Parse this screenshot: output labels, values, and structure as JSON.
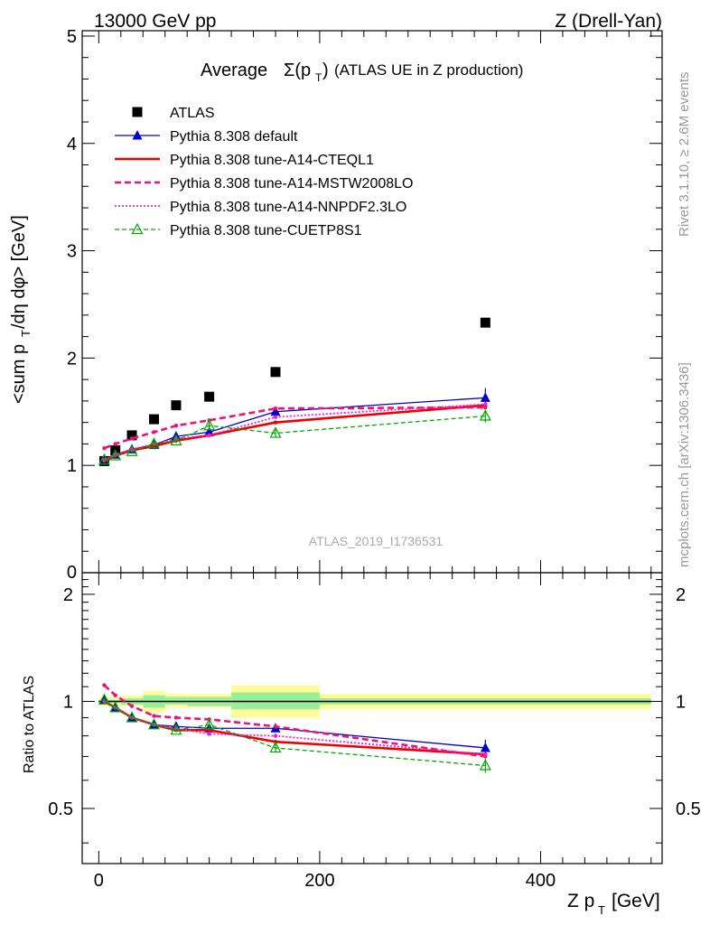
{
  "header": {
    "left": "13000 GeV pp",
    "right": "Z (Drell-Yan)"
  },
  "side_labels": {
    "rivet": "Rivet 3.1.10, ≥ 2.6M events",
    "mcplots": "mcplots.cern.ch [arXiv:1306.3436]"
  },
  "watermark": "ATLAS_2019_I1736531",
  "chart_data": [
    {
      "type": "line",
      "title_main": "Average",
      "title_sigma": "Σ(p",
      "title_sub": "T",
      "title_close": ")",
      "title_rest": "(ATLAS UE in Z production)",
      "ylabel": "<sum p",
      "ylabel_sub": "T",
      "ylabel_rest": "/dη dφ> [GeV]",
      "ylim": [
        0,
        5.05
      ],
      "xlim": [
        -15,
        510
      ],
      "y_ticks": [
        "1",
        "2",
        "3",
        "4",
        "5"
      ],
      "y_zero": "0",
      "legend_placement": "top-left",
      "x": [
        5,
        15,
        30,
        50,
        70,
        100,
        160,
        350
      ],
      "series": [
        {
          "name": "ATLAS",
          "style": "data",
          "color": "#000000",
          "values": [
            1.04,
            1.14,
            1.28,
            1.43,
            1.56,
            1.64,
            1.87,
            2.33
          ]
        },
        {
          "name": "Pythia 8.308 default",
          "style": "triangle",
          "color": "#0000cc",
          "values": [
            1.06,
            1.1,
            1.15,
            1.19,
            1.27,
            1.31,
            1.5,
            1.63
          ],
          "errors": [
            0.01,
            0.01,
            0.01,
            0.02,
            0.02,
            0.03,
            0.04,
            0.09
          ]
        },
        {
          "name": "Pythia 8.308 tune-A14-CTEQL1",
          "style": "solid",
          "color": "#ee0000",
          "values": [
            1.04,
            1.09,
            1.14,
            1.18,
            1.23,
            1.28,
            1.4,
            1.56
          ]
        },
        {
          "name": "Pythia 8.308 tune-A14-MSTW2008LO",
          "style": "dashed",
          "color": "#ee1177",
          "values": [
            1.16,
            1.2,
            1.25,
            1.31,
            1.37,
            1.42,
            1.53,
            1.54
          ]
        },
        {
          "name": "Pythia 8.308 tune-A14-NNPDF2.3LO",
          "style": "dotted",
          "color": "#ee22cc",
          "values": [
            1.05,
            1.1,
            1.15,
            1.2,
            1.25,
            1.28,
            1.45,
            1.57
          ]
        },
        {
          "name": "Pythia 8.308 tune-CUETP8S1",
          "style": "dashed-green",
          "color": "#00aa00",
          "values": [
            1.05,
            1.09,
            1.13,
            1.2,
            1.23,
            1.37,
            1.3,
            1.46
          ],
          "errors": [
            0.01,
            0.01,
            0.01,
            0.02,
            0.02,
            0.03,
            0.04,
            0.06
          ]
        }
      ]
    },
    {
      "type": "line",
      "ylabel": "Ratio to ATLAS",
      "xlabel": "Z p",
      "xlabel_sub": "T",
      "xlabel_rest": "[GeV]",
      "ylim": [
        0.35,
        2.3
      ],
      "xlim": [
        -15,
        510
      ],
      "y_ticks": [
        "0.5",
        "1",
        "2"
      ],
      "x_ticks": [
        "0",
        "200",
        "400"
      ],
      "reference_line": 1,
      "uncertainty_bands": [
        {
          "x": [
            0,
            10
          ],
          "stat_sys": [
            0.97,
            1.03
          ],
          "stat": [
            0.99,
            1.01
          ]
        },
        {
          "x": [
            10,
            20
          ],
          "stat_sys": [
            0.97,
            1.03
          ],
          "stat": [
            0.99,
            1.01
          ]
        },
        {
          "x": [
            20,
            40
          ],
          "stat_sys": [
            0.97,
            1.04
          ],
          "stat": [
            0.98,
            1.02
          ]
        },
        {
          "x": [
            40,
            60
          ],
          "stat_sys": [
            0.93,
            1.07
          ],
          "stat": [
            0.96,
            1.04
          ]
        },
        {
          "x": [
            60,
            80
          ],
          "stat_sys": [
            0.96,
            1.05
          ],
          "stat": [
            0.98,
            1.03
          ]
        },
        {
          "x": [
            80,
            120
          ],
          "stat_sys": [
            0.96,
            1.05
          ],
          "stat": [
            0.97,
            1.03
          ]
        },
        {
          "x": [
            120,
            200
          ],
          "stat_sys": [
            0.9,
            1.11
          ],
          "stat": [
            0.95,
            1.06
          ]
        },
        {
          "x": [
            200,
            500
          ],
          "stat_sys": [
            0.95,
            1.05
          ],
          "stat": [
            0.98,
            1.02
          ]
        }
      ],
      "x": [
        5,
        15,
        30,
        50,
        70,
        100,
        160,
        350
      ],
      "series": [
        {
          "name": "Pythia 8.308 default",
          "style": "triangle",
          "color": "#0000cc",
          "values": [
            1.01,
            0.96,
            0.9,
            0.86,
            0.85,
            0.84,
            0.84,
            0.74
          ],
          "errors": [
            0.01,
            0.01,
            0.01,
            0.01,
            0.01,
            0.02,
            0.02,
            0.04
          ]
        },
        {
          "name": "Pythia 8.308 tune-A14-CTEQL1",
          "style": "solid",
          "color": "#ee0000",
          "values": [
            1.0,
            0.96,
            0.9,
            0.86,
            0.83,
            0.83,
            0.77,
            0.71
          ]
        },
        {
          "name": "Pythia 8.308 tune-A14-MSTW2008LO",
          "style": "dashed",
          "color": "#ee1177",
          "values": [
            1.11,
            1.04,
            0.97,
            0.91,
            0.9,
            0.89,
            0.85,
            0.7
          ]
        },
        {
          "name": "Pythia 8.308 tune-A14-NNPDF2.3LO",
          "style": "dotted",
          "color": "#ee22cc",
          "values": [
            1.0,
            0.96,
            0.9,
            0.86,
            0.84,
            0.81,
            0.8,
            0.71
          ]
        },
        {
          "name": "Pythia 8.308 tune-CUETP8S1",
          "style": "dashed-green",
          "color": "#00aa00",
          "values": [
            1.01,
            0.96,
            0.9,
            0.86,
            0.83,
            0.86,
            0.74,
            0.66
          ],
          "errors": [
            0.01,
            0.01,
            0.01,
            0.01,
            0.01,
            0.02,
            0.02,
            0.03
          ]
        }
      ]
    }
  ]
}
